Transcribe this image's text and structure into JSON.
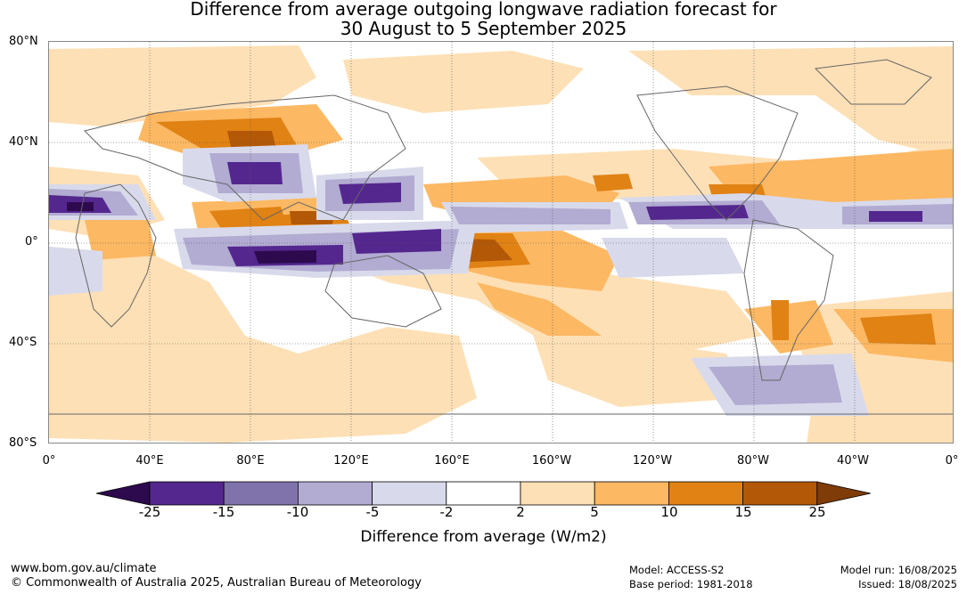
{
  "title_line1": "Difference from average outgoing longwave radiation forecast for",
  "title_line2": "30 August to 5 September 2025",
  "lat_labels": [
    "80°N",
    "40°N",
    "0°",
    "40°S",
    "80°S"
  ],
  "lon_labels": [
    "0°",
    "40°E",
    "80°E",
    "120°E",
    "160°E",
    "160°W",
    "120°W",
    "80°W",
    "40°W",
    "0°"
  ],
  "colorbar": {
    "ticks": [
      "-25",
      "-15",
      "-10",
      "-5",
      "-2",
      "2",
      "5",
      "10",
      "15",
      "25"
    ],
    "colors": [
      "#2d0a4e",
      "#54278f",
      "#8073ac",
      "#b2abd2",
      "#d8daeb",
      "#ffffff",
      "#fee0b6",
      "#fdb863",
      "#e08214",
      "#b35806",
      "#7f3b08"
    ],
    "label": "Difference from average (W/m2)"
  },
  "footer": {
    "website": "www.bom.gov.au/climate",
    "copyright": "© Commonwealth of Australia 2025, Australian Bureau of Meteorology",
    "model": "Model: ACCESS-S2",
    "base_period": "Base period: 1981-2018",
    "model_run": "Model run: 16/08/2025",
    "issued": "Issued: 18/08/2025"
  }
}
